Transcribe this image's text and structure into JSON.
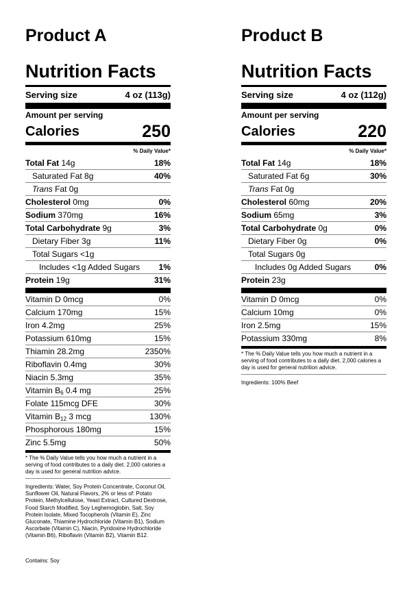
{
  "products": [
    {
      "name": "Product A",
      "heading": "Nutrition Facts",
      "serving_label": "Serving size",
      "serving_size": "4 oz (113g)",
      "amount_per_serving": "Amount per serving",
      "calories_label": "Calories",
      "calories": "250",
      "daily_value_header": "% Daily Value*",
      "nutrients": [
        {
          "name": "Total Fat",
          "amount": " 14g",
          "dv": "18%"
        },
        {
          "name": "Saturated Fat 8g",
          "dv": "40%"
        },
        {
          "prefix": "Trans",
          "name": " Fat 0g",
          "dv": ""
        },
        {
          "name": "Cholesterol",
          "amount": " 0mg",
          "dv": "0%"
        },
        {
          "name": "Sodium",
          "amount": " 370mg",
          "dv": "16%"
        },
        {
          "name": "Total Carbohydrate",
          "amount": " 9g",
          "dv": "3%"
        },
        {
          "name": "Dietary Fiber 3g",
          "dv": "11%"
        },
        {
          "name": "Total Sugars <1g",
          "dv": ""
        },
        {
          "name": "Includes <1g Added Sugars",
          "dv": "1%"
        },
        {
          "name": "Protein",
          "amount": " 19g",
          "dv": "31%"
        }
      ],
      "vitamins": [
        {
          "name": "Vitamin D 0mcg",
          "dv": "0%"
        },
        {
          "name": "Calcium 170mg",
          "dv": "15%"
        },
        {
          "name": "Iron 4.2mg",
          "dv": "25%"
        },
        {
          "name": "Potassium 610mg",
          "dv": "15%"
        },
        {
          "name": "Thiamin 28.2mg",
          "dv": "2350%"
        },
        {
          "name": "Riboflavin 0.4mg",
          "dv": "30%"
        },
        {
          "name": "Niacin 5.3mg",
          "dv": "35%"
        },
        {
          "name": "Vitamin B",
          "subscript": "6",
          "amount": " 0.4 mg",
          "dv": "25%"
        },
        {
          "name": "Folate 115mcg DFE",
          "dv": "30%"
        },
        {
          "name": "Vitamin B",
          "subscript": "12",
          "amount": " 3 mcg",
          "dv": "130%"
        },
        {
          "name": "Phosphorous 180mg",
          "dv": "15%"
        },
        {
          "name": "Zinc 5.5mg",
          "dv": "50%"
        }
      ],
      "footnote": "* The % Daily Value tells you how much a nutrient in a serving of food contributes to a daily diet. 2,000 calories a day is used for general nutrition advice.",
      "ingredients": "Ingredients: Water, Soy Protein Concentrate, Coconut Oil, Sunflower Oil, Natural Flavors, 2% or less of: Potato Protein, Methylcellulose, Yeast Extract, Cultured Dextrose, Food Starch Modified, Soy Leghemoglobin, Salt, Soy Protein Isolate, Mixed Tocopherols (Vitamin E), Zinc Gluconate, Thiamine Hydrochloride (Vitamin B1), Sodium Ascorbate (Vitamin C), Niacin, Pyridoxine Hydrochloride (Vitamin B6), Riboflavin (Vitamin B2), Vitamin B12.",
      "contains": "Contains: Soy"
    },
    {
      "name": "Product B",
      "heading": "Nutrition Facts",
      "serving_label": "Serving size",
      "serving_size": "4 oz (112g)",
      "amount_per_serving": "Amount per serving",
      "calories_label": "Calories",
      "calories": "220",
      "daily_value_header": "% Daily Value*",
      "nutrients": [
        {
          "name": "Total Fat",
          "amount": " 14g",
          "dv": "18%"
        },
        {
          "name": "Saturated Fat 6g",
          "dv": "30%"
        },
        {
          "prefix": "Trans",
          "name": " Fat 0g",
          "dv": ""
        },
        {
          "name": "Cholesterol",
          "amount": " 60mg",
          "dv": "20%"
        },
        {
          "name": "Sodium",
          "amount": " 65mg",
          "dv": "3%"
        },
        {
          "name": "Total Carbohydrate",
          "amount": " 0g",
          "dv": "0%"
        },
        {
          "name": "Dietary Fiber 0g",
          "dv": "0%"
        },
        {
          "name": "Total Sugars 0g",
          "dv": ""
        },
        {
          "name": "Includes 0g Added Sugars",
          "dv": "0%"
        },
        {
          "name": "Protein",
          "amount": " 23g",
          "dv": ""
        }
      ],
      "vitamins": [
        {
          "name": "Vitamin D 0mcg",
          "dv": "0%"
        },
        {
          "name": "Calcium 10mg",
          "dv": "0%"
        },
        {
          "name": "Iron 2.5mg",
          "dv": "15%"
        },
        {
          "name": "Potassium 330mg",
          "dv": "8%"
        }
      ],
      "footnote": "* The % Daily Value tells you how much a nutrient in a serving of food contributes to a daily diet. 2,000 calories a day is used for general nutrition advice.",
      "ingredients": "Ingredients: 100% Beef",
      "contains": ""
    }
  ]
}
